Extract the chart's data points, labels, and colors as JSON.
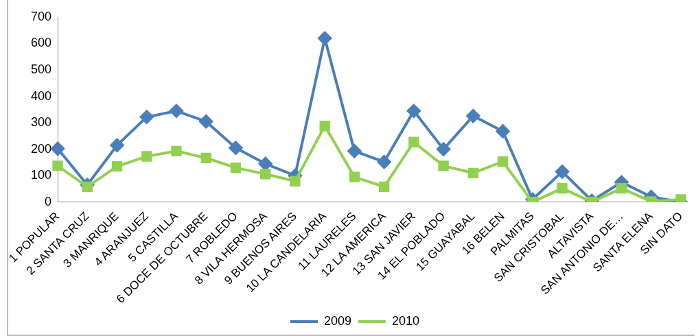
{
  "chart_data": {
    "type": "line",
    "categories": [
      "1 POPULAR",
      "2 SANTA CRUZ",
      "3 MANRIQUE",
      "4 ARANJUEZ",
      "5 CASTILLA",
      "6 DOCE DE OCTUBRE",
      "7 ROBLEDO",
      "8 VILA HERMOSA",
      "9 BUENOS AIRES",
      "10 LA CANDELARIA",
      "11 LAURELES",
      "12 LA AMERICA",
      "13 SAN JAVIER",
      "14 EL POBLADO",
      "15 GUAYABAL",
      "16 BELEN",
      "PALMITAS",
      "SAN CRISTOBAL",
      "ALTAVISTA",
      "SAN ANTONIO DE…",
      "SANTA ELENA",
      "SIN DATO"
    ],
    "series": [
      {
        "name": "2009",
        "color": "#4a7ebb",
        "marker": "diamond",
        "values": [
          202,
          65,
          215,
          322,
          345,
          305,
          205,
          145,
          100,
          620,
          193,
          152,
          345,
          200,
          326,
          268,
          10,
          115,
          5,
          75,
          20,
          0
        ]
      },
      {
        "name": "2010",
        "color": "#92d050",
        "marker": "square",
        "values": [
          137,
          58,
          135,
          173,
          193,
          167,
          130,
          106,
          79,
          288,
          95,
          58,
          227,
          137,
          110,
          153,
          0,
          52,
          0,
          52,
          2,
          10
        ]
      }
    ],
    "ylim": [
      0,
      700
    ],
    "yticks": [
      0,
      100,
      200,
      300,
      400,
      500,
      600,
      700
    ],
    "grid": false,
    "legend": "bottom"
  }
}
